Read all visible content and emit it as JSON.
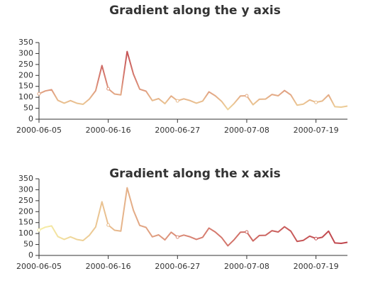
{
  "chart_data": [
    {
      "type": "line",
      "title": "Gradient along the y axis",
      "categories": [
        "2000-06-05",
        null,
        null,
        null,
        null,
        null,
        null,
        null,
        null,
        null,
        null,
        "2000-06-16",
        null,
        null,
        null,
        null,
        null,
        null,
        null,
        null,
        null,
        null,
        "2000-06-27",
        null,
        null,
        null,
        null,
        null,
        null,
        null,
        null,
        null,
        null,
        "2000-07-08",
        null,
        null,
        null,
        null,
        null,
        null,
        null,
        null,
        null,
        null,
        "2000-07-19",
        null,
        null,
        null,
        null,
        null
      ],
      "series": [
        {
          "values": [
            116,
            129,
            135,
            86,
            73,
            85,
            73,
            68,
            92,
            130,
            245,
            139,
            115,
            111,
            309,
            206,
            137,
            128,
            85,
            94,
            71,
            106,
            84,
            93,
            85,
            73,
            83,
            125,
            107,
            82,
            44,
            72,
            106,
            107,
            66,
            91,
            92,
            113,
            107,
            131,
            111,
            64,
            69,
            88,
            77,
            83,
            111,
            57,
            55,
            60
          ]
        }
      ],
      "ylim": [
        0,
        350
      ],
      "yticks": [
        0,
        50,
        100,
        150,
        200,
        250,
        300,
        350
      ],
      "gradient": {
        "axis": "y",
        "colors": [
          "#f6efa6",
          "#d88273",
          "#bf444c"
        ]
      }
    },
    {
      "type": "line",
      "title": "Gradient along the x axis",
      "categories": [
        "2000-06-05",
        null,
        null,
        null,
        null,
        null,
        null,
        null,
        null,
        null,
        null,
        "2000-06-16",
        null,
        null,
        null,
        null,
        null,
        null,
        null,
        null,
        null,
        null,
        "2000-06-27",
        null,
        null,
        null,
        null,
        null,
        null,
        null,
        null,
        null,
        null,
        "2000-07-08",
        null,
        null,
        null,
        null,
        null,
        null,
        null,
        null,
        null,
        null,
        "2000-07-19",
        null,
        null,
        null,
        null,
        null
      ],
      "series": [
        {
          "values": [
            116,
            129,
            135,
            86,
            73,
            85,
            73,
            68,
            92,
            130,
            245,
            139,
            115,
            111,
            309,
            206,
            137,
            128,
            85,
            94,
            71,
            106,
            84,
            93,
            85,
            73,
            83,
            125,
            107,
            82,
            44,
            72,
            106,
            107,
            66,
            91,
            92,
            113,
            107,
            131,
            111,
            64,
            69,
            88,
            77,
            83,
            111,
            57,
            55,
            60
          ]
        }
      ],
      "ylim": [
        0,
        350
      ],
      "yticks": [
        0,
        50,
        100,
        150,
        200,
        250,
        300,
        350
      ],
      "gradient": {
        "axis": "x",
        "colors": [
          "#f6efa6",
          "#d88273",
          "#bf444c"
        ]
      }
    }
  ]
}
